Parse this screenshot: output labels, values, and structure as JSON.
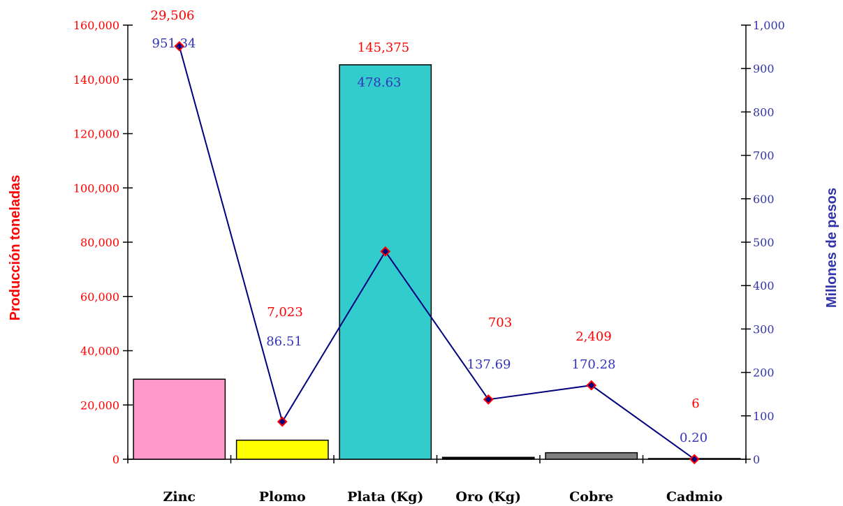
{
  "chart_data": {
    "type": "bar",
    "title": "",
    "categories": [
      "Zinc",
      "Plomo",
      "Plata (Kg)",
      "Oro (Kg)",
      "Cobre",
      "Cadmio"
    ],
    "ylabel_left": "Producción toneladas",
    "ylabel_right": "Millones de pesos",
    "ylim_left": [
      0,
      160000
    ],
    "ylim_right": [
      0,
      1000
    ],
    "yticks_left": [
      "0",
      "20,000",
      "40,000",
      "60,000",
      "80,000",
      "100,000",
      "120,000",
      "140,000",
      "160,000"
    ],
    "yticks_right": [
      "0",
      "100",
      "200",
      "300",
      "400",
      "500",
      "600",
      "700",
      "800",
      "900",
      "1,000"
    ],
    "grid": false,
    "series": [
      {
        "type": "bar",
        "axis": "left",
        "values": [
          29506,
          7023,
          145375,
          703,
          2409,
          6
        ],
        "labels": [
          "29,506",
          "7,023",
          "145,375",
          "703",
          "2,409",
          "6"
        ],
        "colors": [
          "#ff99cc",
          "#ffff00",
          "#33cccc",
          "#000000",
          "#808080",
          "#ffffff"
        ]
      },
      {
        "type": "line",
        "axis": "right",
        "values": [
          951.34,
          86.51,
          478.63,
          137.69,
          170.28,
          0.2
        ],
        "labels": [
          "951.34",
          "86.51",
          "478.63",
          "137.69",
          "170.28",
          "0.20"
        ],
        "line_color": "#000080",
        "marker_fill": "#000080",
        "marker_edge": "#ff0000"
      }
    ]
  }
}
